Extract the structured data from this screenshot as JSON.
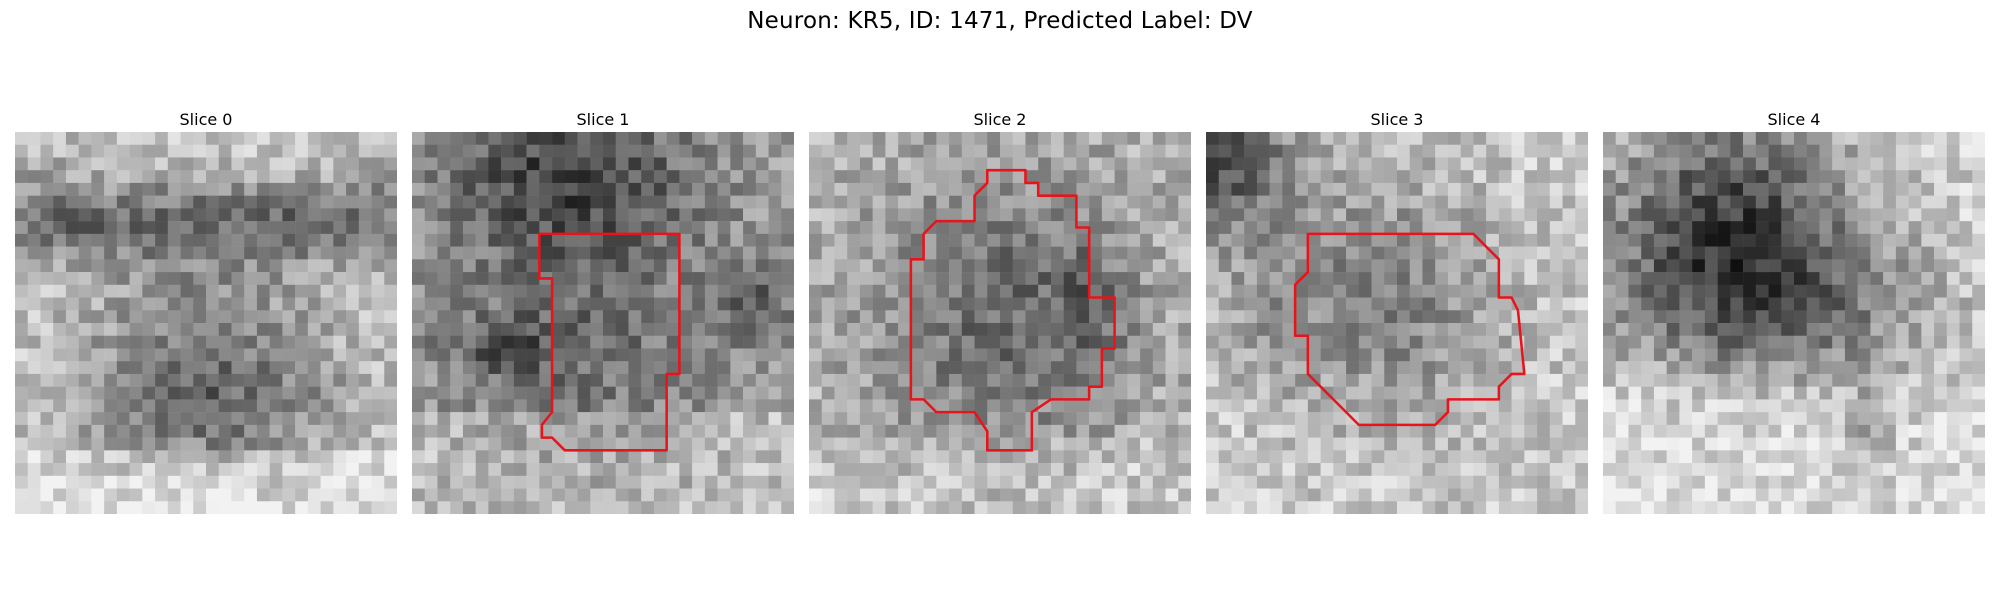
{
  "figure": {
    "title": "Neuron: KR5, ID: 1471, Predicted Label: DV"
  },
  "slices": [
    {
      "label": "Slice 0",
      "has_outline": false
    },
    {
      "label": "Slice 1",
      "has_outline": true
    },
    {
      "label": "Slice 2",
      "has_outline": true
    },
    {
      "label": "Slice 3",
      "has_outline": true
    },
    {
      "label": "Slice 4",
      "has_outline": false
    }
  ],
  "colors": {
    "outline": "#e8141c",
    "background": "#ffffff",
    "colormap": "grayscale"
  }
}
